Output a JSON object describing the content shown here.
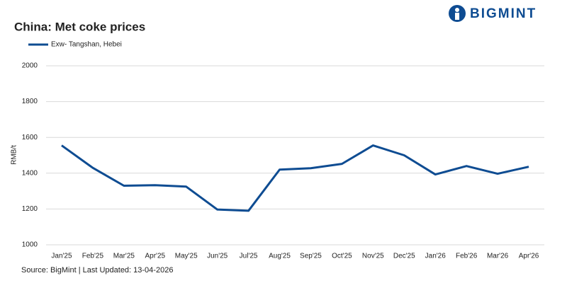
{
  "brand": "BIGMINT",
  "chart_data": {
    "type": "line",
    "title": "China: Met coke prices",
    "y_label": "RMB/t",
    "categories": [
      "Jan'25",
      "Feb'25",
      "Mar'25",
      "Apr'25",
      "May'25",
      "Jun'25",
      "Jul'25",
      "Aug'25",
      "Sep'25",
      "Oct'25",
      "Nov'25",
      "Dec'25",
      "Jan'26",
      "Feb'26",
      "Mar'26",
      "Apr'26"
    ],
    "series": [
      {
        "name": "Exw- Tangshan, Hebei",
        "color": "#0e4c92",
        "values": [
          1555,
          1430,
          1330,
          1333,
          1325,
          1197,
          1190,
          1420,
          1428,
          1452,
          1555,
          1500,
          1393,
          1440,
          1397,
          1436
        ]
      }
    ],
    "ylim": [
      1000,
      2000
    ],
    "yticks": [
      1000,
      1200,
      1400,
      1600,
      1800,
      2000
    ],
    "grid": true,
    "legend": "top-left",
    "source": "Source: BigMint | Last Updated: 13-04-2026"
  }
}
